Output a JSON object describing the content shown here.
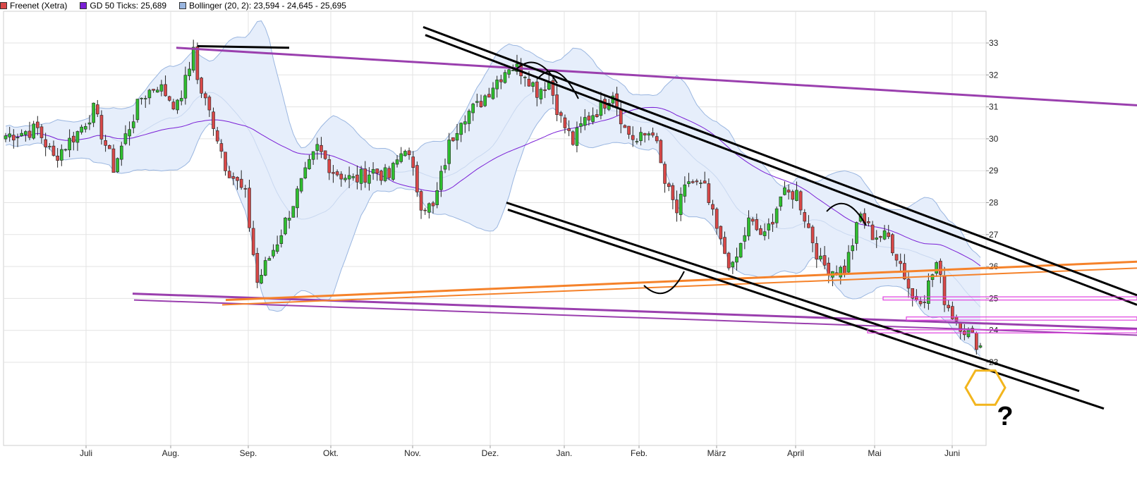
{
  "legend": [
    {
      "label": "Freenet (Xetra)",
      "color": "#d94848"
    },
    {
      "label": "GD 50 Ticks: 25,689",
      "color": "#7a1fd6"
    },
    {
      "label": "Bollinger (20, 2): 23,594 - 24,645 - 25,695",
      "color": "#9ab6e0"
    }
  ],
  "chart_data": {
    "type": "candlestick",
    "series_names": [
      "Freenet (Xetra)",
      "GD 50 Ticks",
      "Bollinger (20, 2)"
    ],
    "x_labels": [
      "Juli",
      "Aug.",
      "Sep.",
      "Okt.",
      "Nov.",
      "Dez.",
      "Jan.",
      "Feb.",
      "März",
      "April",
      "Mai",
      "Juni"
    ],
    "y_ticks": [
      23,
      24,
      25,
      26,
      27,
      28,
      29,
      30,
      31,
      32,
      33
    ],
    "ylim": [
      22.2,
      33.8
    ],
    "grid": true,
    "colors": {
      "up": "#2fbf2f",
      "down": "#d94848",
      "ma": "#7a1fd6",
      "band_fill": "#e6eefb",
      "band_line": "#9ab6e0",
      "trend_purple": "#9a3fae",
      "trend_orange": "#f5822a",
      "trend_black": "#000000",
      "zone_magenta": "#e040e0",
      "hexagon": "#f2b51d"
    },
    "question_mark": "?",
    "last_values": {
      "gd50": 25.689,
      "bollinger_lower": 23.594,
      "bollinger_mid": 24.645,
      "bollinger_upper": 25.695
    }
  }
}
